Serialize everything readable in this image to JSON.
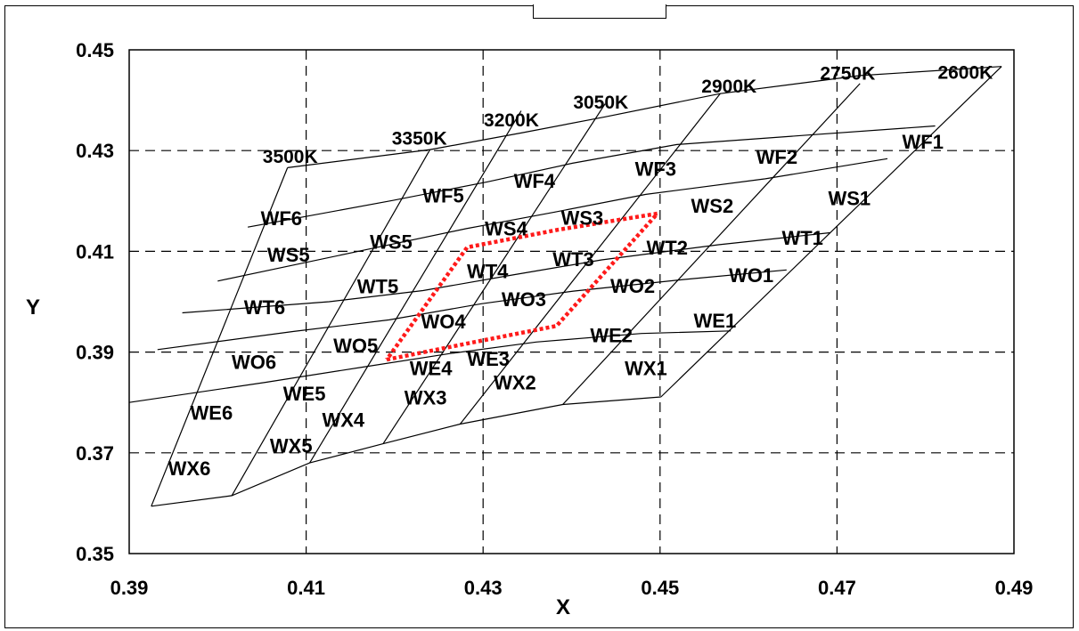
{
  "chart_data": {
    "type": "scatter",
    "title": "",
    "xlabel": "X",
    "ylabel": "Y",
    "xlim": [
      0.39,
      0.49
    ],
    "ylim": [
      0.35,
      0.45
    ],
    "xticks": [
      "0.39",
      "0.41",
      "0.43",
      "0.45",
      "0.47",
      "0.49"
    ],
    "yticks": [
      "0.35",
      "0.37",
      "0.39",
      "0.41",
      "0.43",
      "0.45"
    ],
    "grid": "dashed",
    "isotemperature_lines": [
      {
        "label": "3500K",
        "points": [
          [
            0.3925,
            0.3594
          ],
          [
            0.4079,
            0.4266
          ]
        ]
      },
      {
        "label": "3350K",
        "points": [
          [
            0.4016,
            0.3615
          ],
          [
            0.424,
            0.4302
          ]
        ]
      },
      {
        "label": "3200K",
        "points": [
          [
            0.4104,
            0.368
          ],
          [
            0.4343,
            0.4379
          ]
        ]
      },
      {
        "label": "3050K",
        "points": [
          [
            0.4187,
            0.3718
          ],
          [
            0.4438,
            0.4393
          ]
        ]
      },
      {
        "label": "2900K",
        "points": [
          [
            0.4274,
            0.3757
          ],
          [
            0.4568,
            0.4413
          ]
        ]
      },
      {
        "label": "2750K",
        "points": [
          [
            0.439,
            0.3796
          ],
          [
            0.4726,
            0.4433
          ]
        ]
      },
      {
        "label": "2600K",
        "points": [
          [
            0.4501,
            0.3811
          ],
          [
            0.4886,
            0.4467
          ]
        ]
      }
    ],
    "curve_lines": [
      {
        "name": "F-top",
        "points": [
          [
            0.4079,
            0.4266
          ],
          [
            0.424,
            0.4302
          ],
          [
            0.4343,
            0.4335
          ],
          [
            0.4438,
            0.4367
          ],
          [
            0.4568,
            0.4413
          ],
          [
            0.4726,
            0.4449
          ],
          [
            0.4886,
            0.4467
          ]
        ]
      },
      {
        "name": "F-S",
        "points": [
          [
            0.4034,
            0.4148
          ],
          [
            0.4198,
            0.4201
          ],
          [
            0.4305,
            0.4238
          ],
          [
            0.4401,
            0.4275
          ],
          [
            0.4519,
            0.4312
          ],
          [
            0.4661,
            0.433
          ],
          [
            0.4811,
            0.4349
          ]
        ]
      },
      {
        "name": "S-T",
        "points": [
          [
            0.4,
            0.4041
          ],
          [
            0.417,
            0.4104
          ],
          [
            0.4281,
            0.4145
          ],
          [
            0.4381,
            0.4178
          ],
          [
            0.4484,
            0.4213
          ],
          [
            0.4619,
            0.4244
          ],
          [
            0.4757,
            0.4284
          ]
        ]
      },
      {
        "name": "T-O",
        "points": [
          [
            0.396,
            0.3978
          ],
          [
            0.4126,
            0.4
          ],
          [
            0.4232,
            0.4022
          ],
          [
            0.4333,
            0.4053
          ],
          [
            0.4434,
            0.4083
          ],
          [
            0.4566,
            0.4113
          ],
          [
            0.4692,
            0.4137
          ]
        ]
      },
      {
        "name": "O-E",
        "points": [
          [
            0.3932,
            0.3905
          ],
          [
            0.4086,
            0.3941
          ],
          [
            0.4194,
            0.3964
          ],
          [
            0.4298,
            0.3996
          ],
          [
            0.4402,
            0.4021
          ],
          [
            0.4526,
            0.4044
          ],
          [
            0.4643,
            0.4063
          ]
        ]
      },
      {
        "name": "E-X",
        "points": [
          [
            0.39,
            0.38
          ],
          [
            0.4054,
            0.384
          ],
          [
            0.4163,
            0.387
          ],
          [
            0.4262,
            0.3897
          ],
          [
            0.436,
            0.392
          ],
          [
            0.4479,
            0.3937
          ],
          [
            0.458,
            0.3942
          ]
        ]
      },
      {
        "name": "X-bottom",
        "points": [
          [
            0.3925,
            0.3594
          ],
          [
            0.4016,
            0.3615
          ],
          [
            0.4104,
            0.368
          ],
          [
            0.4187,
            0.3718
          ],
          [
            0.4274,
            0.3757
          ],
          [
            0.439,
            0.3796
          ],
          [
            0.4501,
            0.3811
          ]
        ]
      }
    ],
    "highlight_region": {
      "color": "#ff1a1a",
      "points": [
        [
          0.4191,
          0.3885
        ],
        [
          0.4285,
          0.3918
        ],
        [
          0.4383,
          0.3952
        ],
        [
          0.4497,
          0.4175
        ],
        [
          0.4385,
          0.4143
        ],
        [
          0.4282,
          0.4108
        ],
        [
          0.4191,
          0.3885
        ]
      ]
    },
    "temperature_labels": [
      {
        "text": "3500K",
        "x": 0.4082,
        "y": 0.4288
      },
      {
        "text": "3350K",
        "x": 0.4228,
        "y": 0.4324
      },
      {
        "text": "3200K",
        "x": 0.4332,
        "y": 0.436
      },
      {
        "text": "3050K",
        "x": 0.4433,
        "y": 0.4396
      },
      {
        "text": "2900K",
        "x": 0.4578,
        "y": 0.4428
      },
      {
        "text": "2750K",
        "x": 0.4712,
        "y": 0.4453
      },
      {
        "text": "2600K",
        "x": 0.4845,
        "y": 0.4455
      }
    ],
    "bin_labels": [
      {
        "text": "WF1",
        "x": 0.4797,
        "y": 0.4318
      },
      {
        "text": "WF2",
        "x": 0.4632,
        "y": 0.4288
      },
      {
        "text": "WF3",
        "x": 0.4495,
        "y": 0.4264
      },
      {
        "text": "WF4",
        "x": 0.4358,
        "y": 0.424
      },
      {
        "text": "WF5",
        "x": 0.4255,
        "y": 0.4211
      },
      {
        "text": "WF6",
        "x": 0.4072,
        "y": 0.4166
      },
      {
        "text": "WS1",
        "x": 0.4714,
        "y": 0.4206
      },
      {
        "text": "WS2",
        "x": 0.4559,
        "y": 0.4191
      },
      {
        "text": "WS3",
        "x": 0.4412,
        "y": 0.4167
      },
      {
        "text": "WS4",
        "x": 0.4326,
        "y": 0.4146
      },
      {
        "text": "WS5",
        "x": 0.4196,
        "y": 0.4119
      },
      {
        "text": "WS5",
        "x": 0.408,
        "y": 0.4094
      },
      {
        "text": "WT1",
        "x": 0.4661,
        "y": 0.4127
      },
      {
        "text": "WT2",
        "x": 0.4508,
        "y": 0.4108
      },
      {
        "text": "WT3",
        "x": 0.4402,
        "y": 0.4085
      },
      {
        "text": "WT4",
        "x": 0.4305,
        "y": 0.4061
      },
      {
        "text": "WT5",
        "x": 0.4181,
        "y": 0.4031
      },
      {
        "text": "WT6",
        "x": 0.4053,
        "y": 0.3989
      },
      {
        "text": "WO1",
        "x": 0.4603,
        "y": 0.4053
      },
      {
        "text": "WO2",
        "x": 0.4469,
        "y": 0.4032
      },
      {
        "text": "WO3",
        "x": 0.4346,
        "y": 0.4005
      },
      {
        "text": "WO4",
        "x": 0.4255,
        "y": 0.3961
      },
      {
        "text": "WO5",
        "x": 0.4156,
        "y": 0.3913
      },
      {
        "text": "WO6",
        "x": 0.4041,
        "y": 0.3881
      },
      {
        "text": "WE1",
        "x": 0.4562,
        "y": 0.3963
      },
      {
        "text": "WE2",
        "x": 0.4445,
        "y": 0.3934
      },
      {
        "text": "WE3",
        "x": 0.4306,
        "y": 0.3887
      },
      {
        "text": "WE4",
        "x": 0.4241,
        "y": 0.3868
      },
      {
        "text": "WE5",
        "x": 0.4098,
        "y": 0.3818
      },
      {
        "text": "WE6",
        "x": 0.3993,
        "y": 0.378
      },
      {
        "text": "WX1",
        "x": 0.4484,
        "y": 0.3868
      },
      {
        "text": "WX2",
        "x": 0.4336,
        "y": 0.384
      },
      {
        "text": "WX3",
        "x": 0.4235,
        "y": 0.381
      },
      {
        "text": "WX4",
        "x": 0.4142,
        "y": 0.3766
      },
      {
        "text": "WX5",
        "x": 0.4083,
        "y": 0.3715
      },
      {
        "text": "WX6",
        "x": 0.3968,
        "y": 0.367
      }
    ]
  }
}
